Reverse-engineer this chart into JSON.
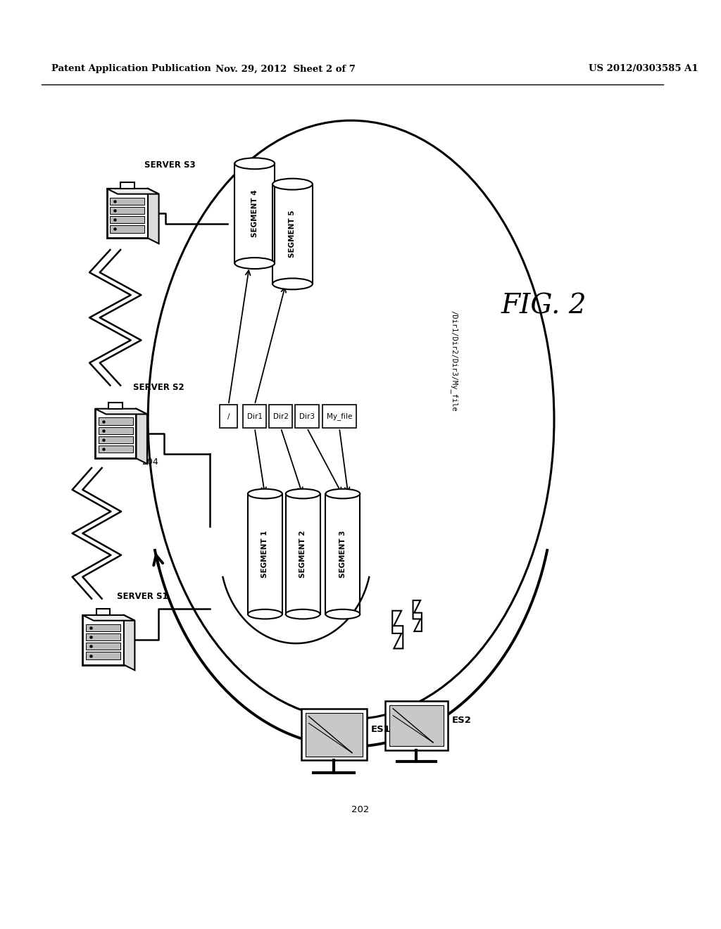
{
  "header_left": "Patent Application Publication",
  "header_center": "Nov. 29, 2012  Sheet 2 of 7",
  "header_right": "US 2012/0303585 A1",
  "fig_label": "FIG. 2",
  "bg_color": "#ffffff",
  "line_color": "#000000",
  "server_labels": [
    "SERVER S3",
    "SERVER S2",
    "SERVER S1"
  ],
  "top_segments": [
    "SEGMENT 4",
    "SEGMENT 5"
  ],
  "bot_segments": [
    "SEGMENT 1",
    "SEGMENT 2",
    "SEGMENT 3"
  ],
  "ns_labels": [
    "/",
    "Dir1",
    "Dir2",
    "Dir3",
    "My_file"
  ],
  "path_label": "/Dir1/Dir2/Dir3/My_file",
  "ref_204": "204",
  "ref_202": "202",
  "es_labels": [
    "ES1",
    "ES2"
  ]
}
